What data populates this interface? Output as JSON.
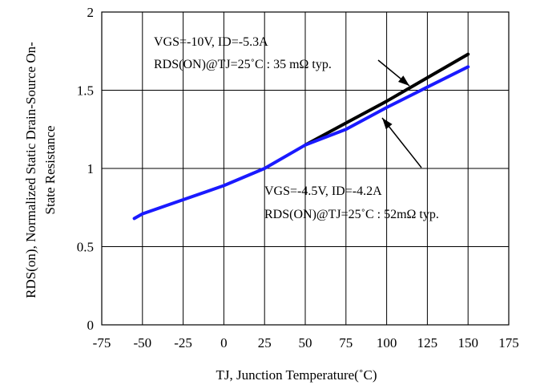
{
  "chart_data": {
    "type": "line",
    "xlabel": "TJ, Junction Temperature(˚C)",
    "ylabel_line1": "RDS(on), Normalized Static Drain-Source On-",
    "ylabel_line2": "State Resistance",
    "xlim": [
      -75,
      175
    ],
    "ylim": [
      0,
      2
    ],
    "xticks": [
      -75,
      -50,
      -25,
      0,
      25,
      50,
      75,
      100,
      125,
      150,
      175
    ],
    "yticks": [
      0,
      0.5,
      1,
      1.5,
      2
    ],
    "xtick_labels": [
      "-75",
      "-50",
      "-25",
      "0",
      "25",
      "50",
      "75",
      "100",
      "125",
      "150",
      "175"
    ],
    "ytick_labels": [
      "0",
      "0.5",
      "1",
      "1.5",
      "2"
    ],
    "grid": true,
    "series": [
      {
        "color": "#000000",
        "x": [
          50,
          75,
          100,
          125,
          150
        ],
        "y": [
          1.15,
          1.29,
          1.43,
          1.58,
          1.73
        ]
      },
      {
        "color": "#1a1aff",
        "x": [
          -55,
          -50,
          -25,
          0,
          25,
          50,
          75,
          100,
          125,
          150
        ],
        "y": [
          0.68,
          0.71,
          0.8,
          0.89,
          1.0,
          1.15,
          1.25,
          1.39,
          1.52,
          1.65
        ]
      }
    ],
    "annotations": [
      {
        "line1": "VGS=-10V, ID=-5.3A",
        "line2": "RDS(ON)@TJ=25˚C : 35 mΩ  typ."
      },
      {
        "line1": "VGS=-4.5V, ID=-4.2A",
        "line2": "RDS(ON)@TJ=25˚C : 52mΩ  typ."
      }
    ]
  }
}
